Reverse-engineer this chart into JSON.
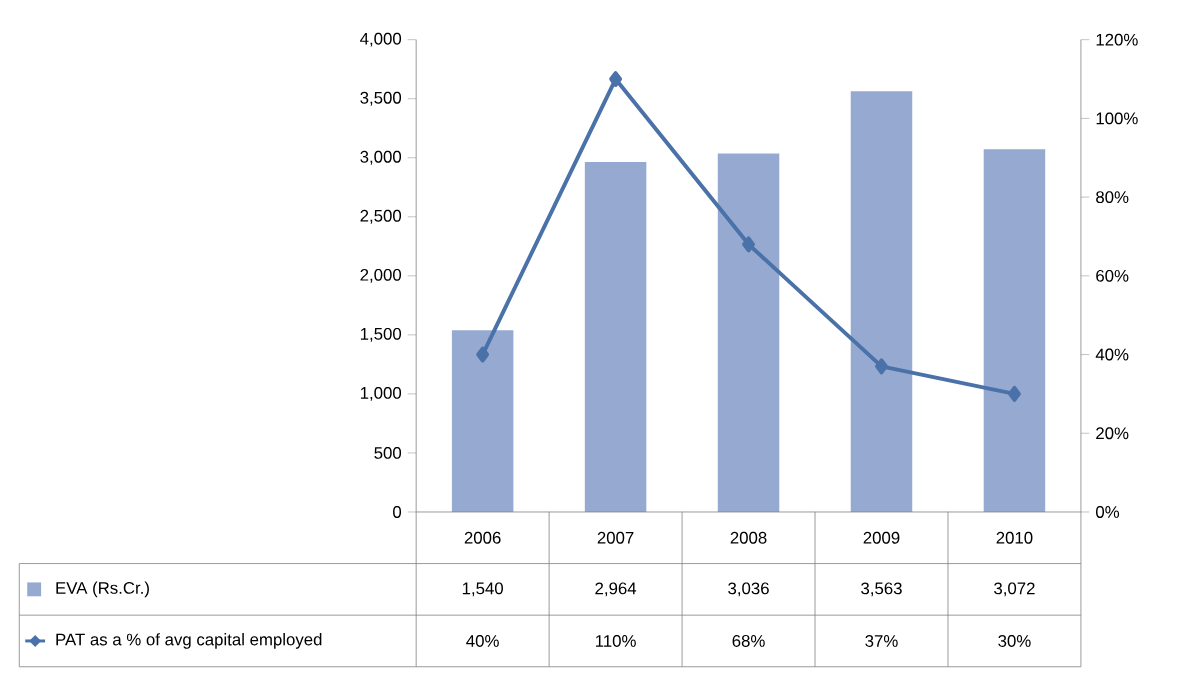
{
  "chart_data": {
    "type": "bar",
    "categories": [
      "2006",
      "2007",
      "2008",
      "2009",
      "2010"
    ],
    "series": [
      {
        "name": "EVA (Rs.Cr.)",
        "color": "#95a9d1",
        "values": [
          1540,
          2964,
          3036,
          3563,
          3072
        ],
        "value_labels": [
          "1,540",
          "2,964",
          "3,036",
          "3,563",
          "3,072"
        ]
      },
      {
        "name": "PAT as a % of avg capital employed",
        "type": "line",
        "axis": "y2",
        "color": "#4a72a8",
        "marker": "diamond",
        "values": [
          40,
          110,
          68,
          37,
          30
        ],
        "value_labels": [
          "40%",
          "110%",
          "68%",
          "37%",
          "30%"
        ]
      }
    ],
    "ylim": [
      0,
      4000
    ],
    "yticks": [
      0,
      {
        "value": 500,
        "label": "500"
      },
      {
        "value": 1000,
        "label": "1,000"
      },
      {
        "value": 1500,
        "label": "1,500"
      },
      {
        "value": 2000,
        "label": "2,000"
      },
      {
        "value": 2500,
        "label": "2,500"
      },
      {
        "value": 3000,
        "label": "3,000"
      },
      {
        "value": 3500,
        "label": "3,500"
      },
      {
        "value": 4000,
        "label": "4,000"
      }
    ],
    "legend": "bottom left",
    "y2lim": [
      0,
      120
    ],
    "y2ticks": [
      {
        "value": 0,
        "label": "0%"
      },
      {
        "value": 20,
        "label": "20%"
      },
      {
        "value": 40,
        "label": "40%"
      },
      {
        "value": 60,
        "label": "60%"
      },
      {
        "value": 80,
        "label": "80%"
      },
      {
        "value": 100,
        "label": "100%"
      },
      {
        "value": 120,
        "label": "120%"
      }
    ]
  }
}
